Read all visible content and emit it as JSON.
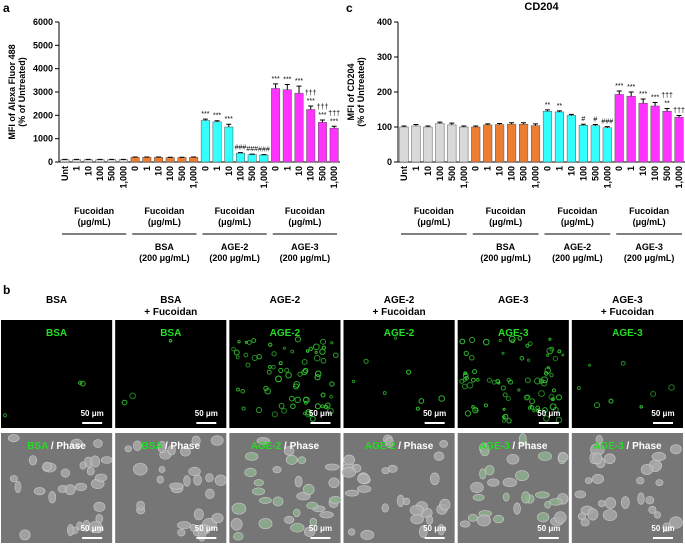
{
  "panel_labels": {
    "a": "a",
    "b": "b",
    "c": "c"
  },
  "chart_data": [
    {
      "type": "bar",
      "ylabel": [
        "MFI of Alexa Fluor 488",
        "(% of Untreated)"
      ],
      "ylim": [
        0,
        6000
      ],
      "yticks": [
        0,
        1000,
        2000,
        3000,
        4000,
        5000,
        6000
      ],
      "series": [
        {
          "color": "#d9d9d9",
          "categories": [
            "Unt",
            "1",
            "10",
            "100",
            "500",
            "1,000"
          ],
          "values": [
            100,
            100,
            100,
            100,
            100,
            100
          ],
          "errors": [
            10,
            10,
            10,
            10,
            10,
            10
          ],
          "sig": [
            null,
            null,
            null,
            null,
            null,
            null
          ],
          "label": [
            "Fucoidan",
            "(μg/mL)"
          ]
        },
        {
          "color": "#ed7d31",
          "categories": [
            "0",
            "1",
            "10",
            "100",
            "500",
            "1,000"
          ],
          "values": [
            200,
            200,
            200,
            190,
            190,
            200
          ],
          "errors": [
            15,
            15,
            15,
            15,
            15,
            15
          ],
          "sig": [
            null,
            null,
            null,
            null,
            null,
            null
          ],
          "label": [
            "Fucoidan",
            "(μg/mL)"
          ],
          "treatment": [
            "BSA",
            "(200 μg/mL)"
          ]
        },
        {
          "color": "#33ffff",
          "categories": [
            "0",
            "1",
            "10",
            "100",
            "500",
            "1,000"
          ],
          "values": [
            1780,
            1720,
            1500,
            380,
            320,
            300
          ],
          "errors": [
            60,
            50,
            120,
            20,
            15,
            15
          ],
          "sig": [
            [
              "***"
            ],
            [
              "***"
            ],
            [
              "***"
            ],
            [
              "###"
            ],
            [
              "###"
            ],
            [
              "###"
            ]
          ],
          "label": [
            "Fucoidan",
            "(μg/mL)"
          ],
          "treatment": [
            "AGE-2",
            "(200 μg/mL)"
          ]
        },
        {
          "color": "#ff33ff",
          "categories": [
            "0",
            "1",
            "10",
            "100",
            "500",
            "1,000"
          ],
          "values": [
            3150,
            3100,
            2950,
            2250,
            1700,
            1450
          ],
          "errors": [
            200,
            220,
            300,
            150,
            100,
            80
          ],
          "sig": [
            [
              "***"
            ],
            [
              "***"
            ],
            [
              "***"
            ],
            [
              "†††",
              "***"
            ],
            [
              "†††",
              "***"
            ],
            [
              "†††",
              "***"
            ]
          ],
          "label": [
            "Fucoidan",
            "(μg/mL)"
          ],
          "treatment": [
            "AGE-3",
            "(200 μg/mL)"
          ]
        }
      ]
    },
    {
      "type": "bar",
      "title": "CD204",
      "ylabel": [
        "MFI of CD204",
        "(% of Untreated)"
      ],
      "ylim": [
        0,
        400
      ],
      "yticks": [
        0,
        100,
        200,
        300,
        400
      ],
      "series": [
        {
          "color": "#d9d9d9",
          "categories": [
            "Unt",
            "1",
            "10",
            "100",
            "500",
            "1,000"
          ],
          "values": [
            100,
            103,
            100,
            110,
            106,
            100
          ],
          "errors": [
            3,
            4,
            3,
            4,
            5,
            3
          ],
          "sig": [
            null,
            null,
            null,
            null,
            null,
            null
          ],
          "label": [
            "Fucoidan",
            "(μg/mL)"
          ]
        },
        {
          "color": "#ed7d31",
          "categories": [
            "0",
            "1",
            "10",
            "100",
            "500",
            "1,000"
          ],
          "values": [
            100,
            106,
            107,
            108,
            108,
            104
          ],
          "errors": [
            3,
            3,
            3,
            4,
            4,
            5
          ],
          "sig": [
            null,
            null,
            null,
            null,
            null,
            null
          ],
          "label": [
            "Fucoidan",
            "(μg/mL)"
          ],
          "treatment": [
            "BSA",
            "(200 μg/mL)"
          ]
        },
        {
          "color": "#33ffff",
          "categories": [
            "0",
            "1",
            "10",
            "100",
            "500",
            "1,000"
          ],
          "values": [
            145,
            143,
            133,
            105,
            104,
            98
          ],
          "errors": [
            4,
            3,
            3,
            3,
            3,
            3
          ],
          "sig": [
            [
              "**"
            ],
            [
              "**"
            ],
            null,
            [
              "#"
            ],
            [
              "#"
            ],
            [
              "###"
            ]
          ],
          "label": [
            "Fucoidan",
            "(μg/mL)"
          ],
          "treatment": [
            "AGE-2",
            "(200 μg/mL)"
          ]
        },
        {
          "color": "#ff33ff",
          "categories": [
            "0",
            "1",
            "10",
            "100",
            "500",
            "1,000"
          ],
          "values": [
            193,
            188,
            168,
            160,
            145,
            128
          ],
          "errors": [
            10,
            12,
            12,
            10,
            8,
            5
          ],
          "sig": [
            [
              "***"
            ],
            [
              "***"
            ],
            [
              "***"
            ],
            [
              "***"
            ],
            [
              "†††",
              "**"
            ],
            [
              "†††"
            ]
          ],
          "label": [
            "Fucoidan",
            "(μg/mL)"
          ],
          "treatment": [
            "AGE-3",
            "(200 μg/mL)"
          ]
        }
      ]
    }
  ],
  "panel_b": {
    "scale_bar": "50 μm",
    "phase_label": " / Phase",
    "columns": [
      {
        "title": [
          "BSA"
        ],
        "stain": "BSA"
      },
      {
        "title": [
          "BSA",
          "+ Fucoidan"
        ],
        "stain": "BSA"
      },
      {
        "title": [
          "AGE-2"
        ],
        "stain": "AGE-2"
      },
      {
        "title": [
          "AGE-2",
          "+ Fucoidan"
        ],
        "stain": "AGE-2"
      },
      {
        "title": [
          "AGE-3"
        ],
        "stain": "AGE-3"
      },
      {
        "title": [
          "AGE-3",
          "+ Fucoidan"
        ],
        "stain": "AGE-3"
      }
    ]
  }
}
